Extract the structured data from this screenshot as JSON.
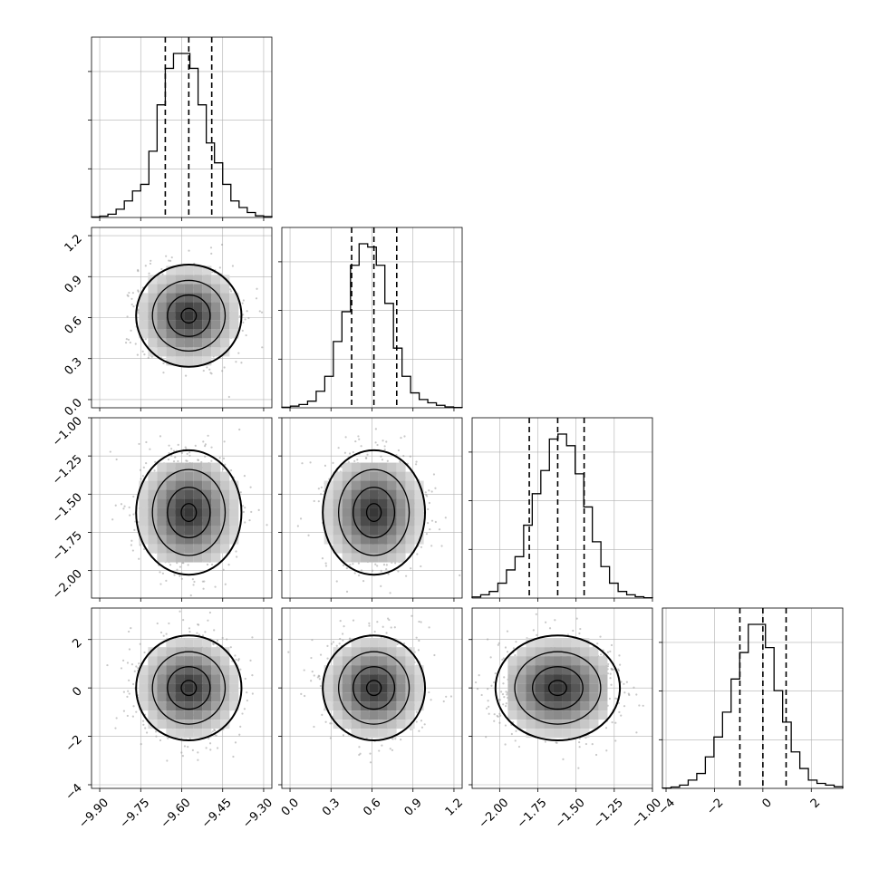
{
  "chart_data": {
    "type": "corner",
    "grid": true,
    "legend": "none",
    "colors": {
      "hist": "#000000",
      "contour": "#000000",
      "scatter": "#9a9a9a",
      "grid": "#b0b0b0"
    },
    "parameters": [
      {
        "range": [
          -9.93,
          -9.27
        ],
        "xticks": [
          -9.9,
          -9.75,
          -9.6,
          -9.45,
          -9.3
        ],
        "xtick_labels": [
          "−9.90",
          "−9.75",
          "−9.60",
          "−9.45",
          "−9.30"
        ],
        "quantiles": [
          -9.66,
          -9.574,
          -9.49
        ],
        "hist_counts": [
          0.3,
          0.8,
          2,
          5,
          10,
          16,
          20,
          40,
          68,
          90,
          99,
          99,
          90,
          68,
          45,
          33,
          20,
          10,
          6,
          3,
          1,
          0.5
        ]
      },
      {
        "range": [
          -0.06,
          1.26
        ],
        "xticks": [
          0.0,
          0.3,
          0.6,
          0.9,
          1.2
        ],
        "xtick_labels": [
          "0.0",
          "0.3",
          "0.6",
          "0.9",
          "1.2"
        ],
        "yticks": [
          0.0,
          0.3,
          0.6,
          0.9,
          1.2
        ],
        "ytick_labels": [
          "0.0",
          "0.3",
          "0.6",
          "0.9",
          "1.2"
        ],
        "quantiles": [
          0.451,
          0.614,
          0.781
        ],
        "hist_counts": [
          0.3,
          1,
          2,
          4,
          10,
          19,
          40,
          58,
          86,
          99,
          97,
          86,
          63,
          36,
          19,
          9,
          5,
          3,
          1.5,
          0.5,
          0.2
        ]
      },
      {
        "range": [
          -2.18,
          -1.0
        ],
        "xticks": [
          -2.0,
          -1.75,
          -1.5,
          -1.25,
          -1.0
        ],
        "xtick_labels": [
          "−2.00",
          "−1.75",
          "−1.50",
          "−1.25",
          "−1.00"
        ],
        "yticks": [
          -2.0,
          -1.75,
          -1.5,
          -1.25,
          -1.0
        ],
        "ytick_labels": [
          "−2.00",
          "−1.75",
          "−1.50",
          "−1.25",
          "−1.00"
        ],
        "quantiles": [
          -1.806,
          -1.62,
          -1.447
        ],
        "hist_counts": [
          0.7,
          2,
          4,
          9,
          17,
          25,
          44,
          63,
          77,
          96,
          99,
          92,
          75,
          55,
          34,
          19,
          9,
          4,
          2,
          0.8,
          0.2
        ]
      },
      {
        "range": [
          -4.15,
          3.3
        ],
        "xticks": [
          -4,
          -2,
          0,
          2
        ],
        "xtick_labels": [
          "−4",
          "−2",
          "0",
          "2"
        ],
        "yticks": [
          -4,
          -2,
          0,
          2
        ],
        "ytick_labels": [
          "−4",
          "−2",
          "0",
          "2"
        ],
        "quantiles": [
          -0.95,
          0.0,
          0.96
        ],
        "hist_counts": [
          0.2,
          0.8,
          2,
          5,
          9,
          19,
          31,
          46,
          66,
          82,
          99,
          99,
          85,
          59,
          40,
          22,
          12,
          5,
          3,
          2,
          1
        ]
      }
    ]
  }
}
